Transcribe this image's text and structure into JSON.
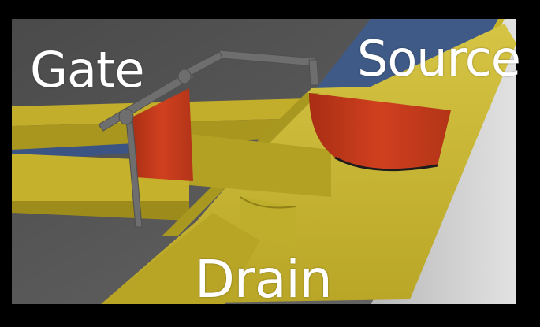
{
  "labels": {
    "gate": "Gate",
    "source": "Source",
    "drain": "Drain"
  },
  "colors": {
    "background": "#000000",
    "floor": "#5b5b5b",
    "wall_light": "#c9c9c9",
    "channel_yellow": "#c8b42a",
    "channel_yellow_dark": "#9c8c1c",
    "channel_yellow_light": "#d9c84a",
    "water_blue": "#3f5a86",
    "gate_red": "#c03a1c",
    "gate_frame": "#6e6e6e",
    "text": "#ffffff"
  }
}
